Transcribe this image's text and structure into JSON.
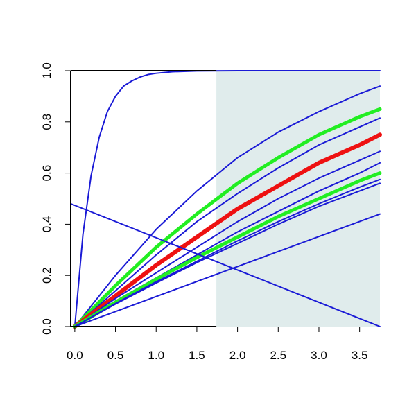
{
  "chart_data": {
    "type": "line",
    "title": "",
    "xlabel": "",
    "ylabel": "",
    "xlim": [
      -0.05,
      3.75
    ],
    "ylim": [
      0,
      1
    ],
    "x_ticks": [
      0,
      0.5,
      1,
      1.5,
      2,
      2.5,
      3,
      3.5
    ],
    "x_tick_labels": [
      "0.0",
      "0.5",
      "1.0",
      "1.5",
      "2.0",
      "2.5",
      "3.0",
      "3.5"
    ],
    "y_ticks": [
      0,
      0.2,
      0.4,
      0.6,
      0.8,
      1.0
    ],
    "y_tick_labels": [
      "0.0",
      "0.2",
      "0.4",
      "0.6",
      "0.8",
      "1.0"
    ],
    "grid": false,
    "shaded_region": {
      "x_from": 1.74,
      "x_to": 3.75,
      "color": "#e0ecec"
    },
    "colors": {
      "blue": "#1a1ad6",
      "green": "#22ee22",
      "red": "#ee1111"
    },
    "series": [
      {
        "color": "blue",
        "width": 2,
        "x": [
          0,
          0.1,
          0.2,
          0.3,
          0.4,
          0.5,
          0.6,
          0.7,
          0.8,
          0.9,
          1.0,
          1.2,
          1.5,
          2.0,
          3.0,
          3.75
        ],
        "y": [
          0,
          0.36,
          0.59,
          0.74,
          0.84,
          0.9,
          0.94,
          0.96,
          0.975,
          0.985,
          0.99,
          0.996,
          0.999,
          1.0,
          1.0,
          1.0
        ]
      },
      {
        "color": "blue",
        "width": 2,
        "x": [
          0,
          0.5,
          1.0,
          1.5,
          2.0,
          2.5,
          3.0,
          3.5,
          3.75
        ],
        "y": [
          0,
          0.2,
          0.38,
          0.53,
          0.66,
          0.76,
          0.84,
          0.91,
          0.94
        ]
      },
      {
        "color": "green",
        "width": 5,
        "x": [
          0,
          0.5,
          1.0,
          1.5,
          2.0,
          2.5,
          3.0,
          3.5,
          3.75
        ],
        "y": [
          0,
          0.16,
          0.31,
          0.44,
          0.56,
          0.66,
          0.75,
          0.82,
          0.85
        ]
      },
      {
        "color": "blue",
        "width": 2,
        "x": [
          0,
          0.5,
          1.0,
          1.5,
          2.0,
          2.5,
          3.0,
          3.5,
          3.75
        ],
        "y": [
          0,
          0.14,
          0.28,
          0.41,
          0.52,
          0.62,
          0.71,
          0.78,
          0.815
        ]
      },
      {
        "color": "red",
        "width": 6,
        "x": [
          0,
          0.5,
          1.0,
          1.5,
          2.0,
          2.5,
          3.0,
          3.5,
          3.75
        ],
        "y": [
          0,
          0.12,
          0.24,
          0.35,
          0.46,
          0.55,
          0.64,
          0.71,
          0.75
        ]
      },
      {
        "color": "blue",
        "width": 2,
        "x": [
          0,
          0.5,
          1.0,
          1.5,
          2.0,
          2.5,
          3.0,
          3.5,
          3.75
        ],
        "y": [
          0,
          0.11,
          0.21,
          0.31,
          0.41,
          0.5,
          0.58,
          0.65,
          0.685
        ]
      },
      {
        "color": "blue",
        "width": 2,
        "x": [
          0,
          0.5,
          1.0,
          1.5,
          2.0,
          2.5,
          3.0,
          3.5,
          3.75
        ],
        "y": [
          0,
          0.1,
          0.19,
          0.28,
          0.37,
          0.45,
          0.53,
          0.6,
          0.64
        ]
      },
      {
        "color": "green",
        "width": 5,
        "x": [
          0,
          0.5,
          1.0,
          1.5,
          2.0,
          2.5,
          3.0,
          3.5,
          3.75
        ],
        "y": [
          0,
          0.095,
          0.185,
          0.27,
          0.35,
          0.43,
          0.5,
          0.57,
          0.6
        ]
      },
      {
        "color": "blue",
        "width": 2,
        "x": [
          0,
          0.5,
          1.0,
          1.5,
          2.0,
          2.5,
          3.0,
          3.5,
          3.75
        ],
        "y": [
          0,
          0.09,
          0.175,
          0.255,
          0.335,
          0.41,
          0.48,
          0.545,
          0.575
        ]
      },
      {
        "color": "blue",
        "width": 2,
        "x": [
          0,
          0.5,
          1.0,
          1.5,
          2.0,
          2.5,
          3.0,
          3.5,
          3.75
        ],
        "y": [
          0,
          0.088,
          0.17,
          0.25,
          0.325,
          0.4,
          0.47,
          0.53,
          0.56
        ]
      },
      {
        "color": "blue",
        "width": 2,
        "x": [
          0,
          3.75
        ],
        "y": [
          0,
          0.44
        ]
      },
      {
        "color": "blue",
        "width": 2,
        "x": [
          -0.05,
          3.75
        ],
        "y": [
          0.48,
          0.0
        ]
      }
    ]
  }
}
